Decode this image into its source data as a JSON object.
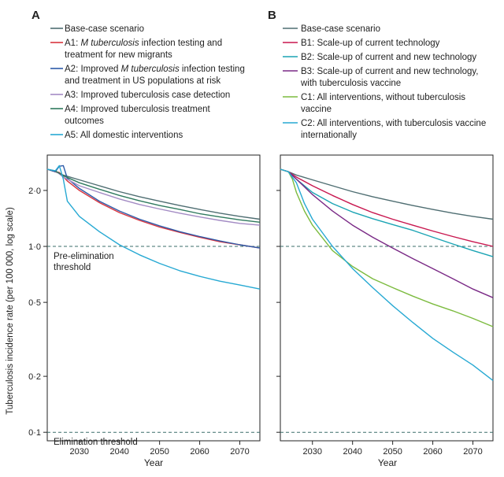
{
  "figure": {
    "ylabel": "Tuberculosis incidence rate (per 100 000, log scale)",
    "xlabel": "Year"
  },
  "colors": {
    "frame": "#222222",
    "threshold": "#3a6e6a",
    "text": "#222222"
  },
  "chart_data": [
    {
      "type": "line",
      "panel_label": "A",
      "title": "",
      "xlabel": "Year",
      "ylabel": "Tuberculosis incidence rate (per 100 000, log scale)",
      "y_scale": "log",
      "xlim": [
        2022,
        2075
      ],
      "ylim": [
        0.09,
        3.1
      ],
      "x_ticks": [
        2030,
        2040,
        2050,
        2060,
        2070
      ],
      "x_tick_labels": [
        "2030",
        "2040",
        "2050",
        "2060",
        "2070"
      ],
      "y_ticks": [
        0.1,
        0.2,
        0.5,
        1,
        2
      ],
      "y_tick_labels": [
        "0·1",
        "0·2",
        "0·5",
        "1·0",
        "2·0"
      ],
      "thresholds": [
        {
          "value": 1.0,
          "label_lines": [
            "Pre-elimination",
            "threshold"
          ]
        },
        {
          "value": 0.1,
          "label_lines": [
            "Elimination threshold"
          ]
        }
      ],
      "legend": [
        {
          "color": "#4f6e72",
          "lines": [
            "Base-case scenario"
          ],
          "italic": ""
        },
        {
          "color": "#d9343e",
          "lines": [
            "A1: M tuberculosis infection testing and",
            "treatment for new migrants"
          ],
          "italic": "M tuberculosis"
        },
        {
          "color": "#2c5aa8",
          "lines": [
            "A2: Improved M tuberculosis infection testing",
            "and treatment in US populations at risk"
          ],
          "italic": "M tuberculosis"
        },
        {
          "color": "#a38bc4",
          "lines": [
            "A3: Improved tuberculosis case detection"
          ],
          "italic": ""
        },
        {
          "color": "#2f7a5e",
          "lines": [
            "A4: Improved tuberculosis treatment",
            "outcomes"
          ],
          "italic": ""
        },
        {
          "color": "#27a9d3",
          "lines": [
            "A5: All domestic interventions"
          ],
          "italic": ""
        }
      ],
      "series": [
        {
          "name": "Base-case scenario",
          "color": "#4f6e72",
          "x": [
            2022,
            2024,
            2026,
            2030,
            2035,
            2040,
            2045,
            2050,
            2055,
            2060,
            2065,
            2070,
            2075
          ],
          "values": [
            2.6,
            2.52,
            2.42,
            2.28,
            2.12,
            1.97,
            1.85,
            1.75,
            1.66,
            1.58,
            1.51,
            1.45,
            1.4
          ]
        },
        {
          "name": "A1: M tuberculosis infection testing and treatment for new migrants",
          "color": "#d9343e",
          "x": [
            2022,
            2024,
            2025,
            2027,
            2030,
            2035,
            2040,
            2045,
            2050,
            2055,
            2060,
            2065,
            2070,
            2075
          ],
          "values": [
            2.6,
            2.52,
            2.5,
            2.25,
            2.0,
            1.72,
            1.52,
            1.38,
            1.27,
            1.19,
            1.12,
            1.06,
            1.02,
            0.98
          ]
        },
        {
          "name": "A2: Improved M tuberculosis infection testing and treatment in US populations at risk",
          "color": "#2c5aa8",
          "x": [
            2022,
            2024,
            2025,
            2026,
            2027,
            2030,
            2035,
            2040,
            2045,
            2050,
            2055,
            2060,
            2065,
            2070,
            2075
          ],
          "values": [
            2.6,
            2.52,
            2.7,
            2.72,
            2.32,
            2.05,
            1.75,
            1.55,
            1.4,
            1.29,
            1.2,
            1.13,
            1.07,
            1.02,
            0.98
          ]
        },
        {
          "name": "A3: Improved tuberculosis case detection",
          "color": "#a38bc4",
          "x": [
            2022,
            2024,
            2026,
            2030,
            2035,
            2040,
            2045,
            2050,
            2055,
            2060,
            2065,
            2070,
            2075
          ],
          "values": [
            2.6,
            2.55,
            2.36,
            2.12,
            1.95,
            1.8,
            1.68,
            1.59,
            1.51,
            1.44,
            1.38,
            1.33,
            1.3
          ]
        },
        {
          "name": "A4: Improved tuberculosis treatment outcomes",
          "color": "#2f7a5e",
          "x": [
            2022,
            2024,
            2026,
            2030,
            2035,
            2040,
            2045,
            2050,
            2055,
            2060,
            2065,
            2070,
            2075
          ],
          "values": [
            2.6,
            2.55,
            2.4,
            2.2,
            2.03,
            1.88,
            1.76,
            1.66,
            1.58,
            1.5,
            1.44,
            1.39,
            1.35
          ]
        },
        {
          "name": "A5: All domestic interventions",
          "color": "#27a9d3",
          "x": [
            2022,
            2024,
            2025,
            2026,
            2027,
            2030,
            2035,
            2040,
            2045,
            2050,
            2055,
            2060,
            2065,
            2070,
            2075
          ],
          "values": [
            2.6,
            2.55,
            2.72,
            2.3,
            1.75,
            1.45,
            1.2,
            1.02,
            0.9,
            0.81,
            0.74,
            0.69,
            0.65,
            0.62,
            0.59
          ]
        }
      ]
    },
    {
      "type": "line",
      "panel_label": "B",
      "title": "",
      "xlabel": "Year",
      "ylabel": "",
      "y_scale": "log",
      "xlim": [
        2022,
        2075
      ],
      "ylim": [
        0.09,
        3.1
      ],
      "x_ticks": [
        2030,
        2040,
        2050,
        2060,
        2070
      ],
      "x_tick_labels": [
        "2030",
        "2040",
        "2050",
        "2060",
        "2070"
      ],
      "y_ticks": [
        0.1,
        0.2,
        0.5,
        1,
        2
      ],
      "y_tick_labels": [
        "",
        "",
        "",
        "",
        ""
      ],
      "thresholds": [
        {
          "value": 1.0,
          "label_lines": []
        },
        {
          "value": 0.1,
          "label_lines": []
        }
      ],
      "legend": [
        {
          "color": "#4f6e72",
          "lines": [
            "Base-case scenario"
          ],
          "italic": ""
        },
        {
          "color": "#c8174f",
          "lines": [
            "B1: Scale-up of current technology"
          ],
          "italic": ""
        },
        {
          "color": "#1ba4b4",
          "lines": [
            "B2: Scale-up of current and new technology"
          ],
          "italic": ""
        },
        {
          "color": "#7a2a86",
          "lines": [
            "B3: Scale-up of current and new technology,",
            "with tuberculosis vaccine"
          ],
          "italic": ""
        },
        {
          "color": "#7cbb3f",
          "lines": [
            "C1: All interventions, without tuberculosis",
            "vaccine"
          ],
          "italic": ""
        },
        {
          "color": "#27a9d3",
          "lines": [
            "C2: All interventions, with tuberculosis vaccine",
            "internationally"
          ],
          "italic": ""
        }
      ],
      "series": [
        {
          "name": "Base-case scenario",
          "color": "#4f6e72",
          "x": [
            2022,
            2024,
            2026,
            2030,
            2035,
            2040,
            2045,
            2050,
            2055,
            2060,
            2065,
            2070,
            2075
          ],
          "values": [
            2.6,
            2.52,
            2.42,
            2.28,
            2.12,
            1.97,
            1.85,
            1.75,
            1.66,
            1.58,
            1.51,
            1.45,
            1.4
          ]
        },
        {
          "name": "B1: Scale-up of current technology",
          "color": "#c8174f",
          "x": [
            2022,
            2024,
            2026,
            2030,
            2035,
            2040,
            2045,
            2050,
            2055,
            2060,
            2065,
            2070,
            2075
          ],
          "values": [
            2.6,
            2.52,
            2.36,
            2.12,
            1.88,
            1.68,
            1.52,
            1.4,
            1.3,
            1.21,
            1.13,
            1.06,
            1.0
          ]
        },
        {
          "name": "B2: Scale-up of current and new technology",
          "color": "#1ba4b4",
          "x": [
            2022,
            2024,
            2026,
            2030,
            2035,
            2040,
            2045,
            2050,
            2055,
            2060,
            2065,
            2070,
            2075
          ],
          "values": [
            2.6,
            2.52,
            2.3,
            1.95,
            1.7,
            1.53,
            1.41,
            1.31,
            1.22,
            1.12,
            1.03,
            0.95,
            0.88
          ]
        },
        {
          "name": "B3: Scale-up of current and new technology, with tuberculosis vaccine",
          "color": "#7a2a86",
          "x": [
            2022,
            2024,
            2026,
            2030,
            2035,
            2040,
            2045,
            2050,
            2055,
            2060,
            2065,
            2070,
            2075
          ],
          "values": [
            2.6,
            2.52,
            2.3,
            1.9,
            1.55,
            1.3,
            1.12,
            0.98,
            0.86,
            0.76,
            0.67,
            0.59,
            0.53
          ]
        },
        {
          "name": "C1: All interventions, without tuberculosis vaccine",
          "color": "#7cbb3f",
          "x": [
            2022,
            2024,
            2025,
            2026,
            2028,
            2030,
            2035,
            2040,
            2045,
            2050,
            2055,
            2060,
            2065,
            2070,
            2075
          ],
          "values": [
            2.6,
            2.52,
            2.3,
            1.95,
            1.55,
            1.3,
            0.95,
            0.78,
            0.67,
            0.6,
            0.54,
            0.49,
            0.45,
            0.41,
            0.37
          ]
        },
        {
          "name": "C2: All interventions, with tuberculosis vaccine internationally",
          "color": "#27a9d3",
          "x": [
            2022,
            2024,
            2026,
            2028,
            2030,
            2035,
            2040,
            2045,
            2050,
            2055,
            2060,
            2065,
            2070,
            2075
          ],
          "values": [
            2.6,
            2.52,
            2.2,
            1.7,
            1.4,
            1.0,
            0.76,
            0.6,
            0.48,
            0.39,
            0.32,
            0.27,
            0.23,
            0.19
          ]
        }
      ]
    }
  ]
}
